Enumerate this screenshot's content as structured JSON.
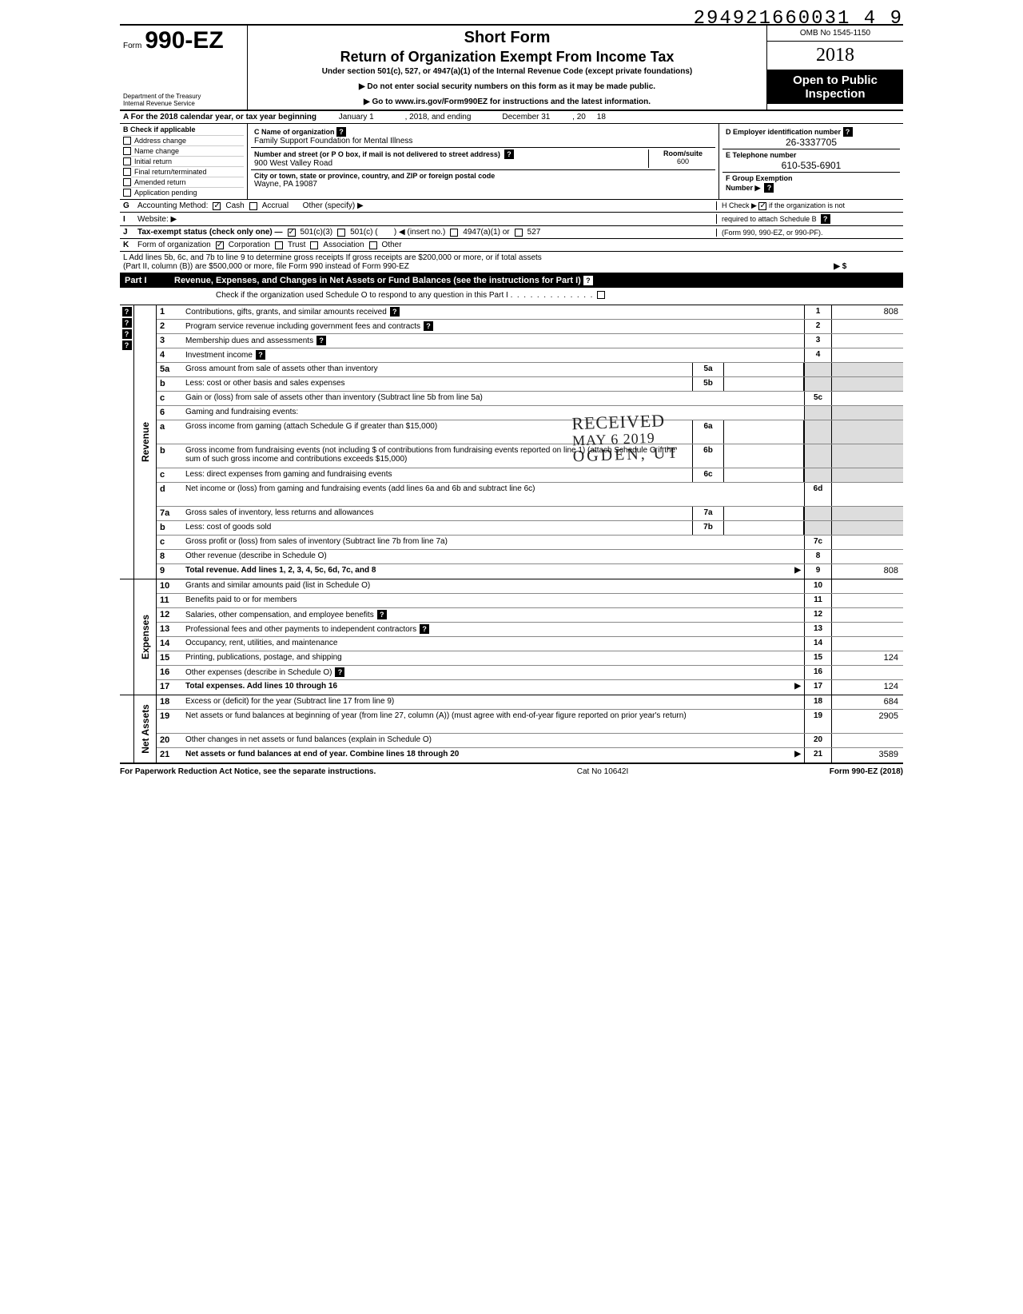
{
  "doc_id": "294921660031 4  9",
  "header": {
    "form_prefix": "Form",
    "form_number": "990-EZ",
    "dept_line1": "Department of the Treasury",
    "dept_line2": "Internal Revenue Service",
    "short_form": "Short Form",
    "return_title": "Return of Organization Exempt From Income Tax",
    "under_section": "Under section 501(c), 527, or 4947(a)(1) of the Internal Revenue Code (except private foundations)",
    "ssn_warn": "▶ Do not enter social security numbers on this form as it may be made public.",
    "goto": "▶ Go to www.irs.gov/Form990EZ for instructions and the latest information.",
    "omb": "OMB No 1545-1150",
    "year_display": "2018",
    "open_line1": "Open to Public",
    "open_line2": "Inspection"
  },
  "lineA": {
    "prefix": "A For the 2018 calendar year, or tax year beginning",
    "begin": "January 1",
    "mid": ", 2018, and ending",
    "end": "December 31",
    "suffix": ", 20",
    "yy": "18"
  },
  "blockB": {
    "header": "B  Check if applicable",
    "items": [
      "Address change",
      "Name change",
      "Initial return",
      "Final return/terminated",
      "Amended return",
      "Application pending"
    ]
  },
  "blockC": {
    "c_label": "C  Name of organization",
    "c_value": "Family Support Foundation for Mental Illness",
    "street_label": "Number and street (or P O  box, if mail is not delivered to street address)",
    "street_value": "900 West Valley Road",
    "room_label": "Room/suite",
    "room_value": "600",
    "city_label": "City or town, state or province, country, and ZIP or foreign postal code",
    "city_value": "Wayne, PA  19087"
  },
  "blockD": {
    "d_label": "D Employer identification number",
    "d_value": "26-3337705",
    "e_label": "E Telephone number",
    "e_value": "610-535-6901",
    "f_label": "F Group Exemption",
    "f_label2": "Number ▶"
  },
  "lineG": {
    "letter": "G",
    "label": "Accounting Method:",
    "cash": "Cash",
    "accrual": "Accrual",
    "other": "Other (specify) ▶"
  },
  "lineH": {
    "text1": "H Check ▶",
    "text2": "if the organization is not",
    "text3": "required to attach Schedule B",
    "text4": "(Form 990, 990-EZ, or 990-PF)."
  },
  "lineI": {
    "letter": "I",
    "label": "Website: ▶"
  },
  "lineJ": {
    "letter": "J",
    "label": "Tax-exempt status (check only one) —",
    "o1": "501(c)(3)",
    "o2": "501(c) (",
    "o2b": ") ◀ (insert no.)",
    "o3": "4947(a)(1) or",
    "o4": "527"
  },
  "lineK": {
    "letter": "K",
    "label": "Form of organization",
    "o1": "Corporation",
    "o2": "Trust",
    "o3": "Association",
    "o4": "Other"
  },
  "lineL": {
    "text1": "L Add lines 5b, 6c, and 7b to line 9 to determine gross receipts  If gross receipts are $200,000 or more, or if total assets",
    "text2": "(Part II, column (B)) are $500,000 or more, file Form 990 instead of Form 990-EZ",
    "arrow": "▶  $"
  },
  "part1": {
    "label": "Part I",
    "title": "Revenue, Expenses, and Changes in Net Assets or Fund Balances (see the instructions for Part I)",
    "check_o": "Check if the organization used Schedule O to respond to any question in this Part I"
  },
  "sections": {
    "revenue_label": "Revenue",
    "expenses_label": "Expenses",
    "netassets_label": "Net Assets"
  },
  "rows": [
    {
      "n": "1",
      "d": "Contributions, gifts, grants, and similar amounts received",
      "end": "1",
      "v": "808",
      "help": true
    },
    {
      "n": "2",
      "d": "Program service revenue including government fees and contracts",
      "end": "2",
      "v": "",
      "help": true
    },
    {
      "n": "3",
      "d": "Membership dues and assessments",
      "end": "3",
      "v": "",
      "help": true
    },
    {
      "n": "4",
      "d": "Investment income",
      "end": "4",
      "v": "",
      "help": true
    },
    {
      "n": "5a",
      "d": "Gross amount from sale of assets other than inventory",
      "mid": "5a",
      "shade": true
    },
    {
      "n": "b",
      "d": "Less: cost or other basis and sales expenses",
      "mid": "5b",
      "shade": true
    },
    {
      "n": "c",
      "d": "Gain or (loss) from sale of assets other than inventory (Subtract line 5b from line 5a)",
      "end": "5c",
      "v": ""
    },
    {
      "n": "6",
      "d": "Gaming and fundraising events:",
      "noend": true
    },
    {
      "n": "a",
      "d": "Gross income from gaming (attach Schedule G if greater than $15,000)",
      "mid": "6a",
      "shade": true,
      "tall": true
    },
    {
      "n": "b",
      "d": "Gross income from fundraising events (not including  $                              of contributions from fundraising events reported on line 1) (attach Schedule G if the sum of such gross income and contributions exceeds $15,000)",
      "mid": "6b",
      "shade": true,
      "tall": true
    },
    {
      "n": "c",
      "d": "Less: direct expenses from gaming and fundraising events",
      "mid": "6c",
      "shade": true
    },
    {
      "n": "d",
      "d": "Net income or (loss) from gaming and fundraising events (add lines 6a and 6b and subtract line 6c)",
      "end": "6d",
      "v": "",
      "tall": true
    },
    {
      "n": "7a",
      "d": "Gross sales of inventory, less returns and allowances",
      "mid": "7a",
      "shade": true
    },
    {
      "n": "b",
      "d": "Less: cost of goods sold",
      "mid": "7b",
      "shade": true
    },
    {
      "n": "c",
      "d": "Gross profit or (loss) from sales of inventory (Subtract line 7b from line 7a)",
      "end": "7c",
      "v": ""
    },
    {
      "n": "8",
      "d": "Other revenue (describe in Schedule O)",
      "end": "8",
      "v": ""
    },
    {
      "n": "9",
      "d": "Total revenue. Add lines 1, 2, 3, 4, 5c, 6d, 7c, and 8",
      "end": "9",
      "v": "808",
      "arrow": true,
      "bold": true
    }
  ],
  "exp_rows": [
    {
      "n": "10",
      "d": "Grants and similar amounts paid (list in Schedule O)",
      "end": "10",
      "v": ""
    },
    {
      "n": "11",
      "d": "Benefits paid to or for members",
      "end": "11",
      "v": ""
    },
    {
      "n": "12",
      "d": "Salaries, other compensation, and employee benefits",
      "end": "12",
      "v": "",
      "help": true
    },
    {
      "n": "13",
      "d": "Professional fees and other payments to independent contractors",
      "end": "13",
      "v": "",
      "help": true
    },
    {
      "n": "14",
      "d": "Occupancy, rent, utilities, and maintenance",
      "end": "14",
      "v": ""
    },
    {
      "n": "15",
      "d": "Printing, publications, postage, and shipping",
      "end": "15",
      "v": "124"
    },
    {
      "n": "16",
      "d": "Other expenses (describe in Schedule O)",
      "end": "16",
      "v": "",
      "help": true
    },
    {
      "n": "17",
      "d": "Total expenses. Add lines 10 through 16",
      "end": "17",
      "v": "124",
      "arrow": true,
      "bold": true
    }
  ],
  "na_rows": [
    {
      "n": "18",
      "d": "Excess or (deficit) for the year (Subtract line 17 from line 9)",
      "end": "18",
      "v": "684"
    },
    {
      "n": "19",
      "d": "Net assets or fund balances at beginning of year (from line 27, column (A)) (must agree with end-of-year figure reported on prior year's return)",
      "end": "19",
      "v": "2905",
      "tall": true
    },
    {
      "n": "20",
      "d": "Other changes in net assets or fund balances (explain in Schedule O)",
      "end": "20",
      "v": ""
    },
    {
      "n": "21",
      "d": "Net assets or fund balances at end of year. Combine lines 18 through 20",
      "end": "21",
      "v": "3589",
      "arrow": true,
      "bold": true
    }
  ],
  "footer": {
    "left": "For Paperwork Reduction Act Notice, see the separate instructions.",
    "mid": "Cat  No  10642I",
    "right": "Form 990-EZ (2018)"
  },
  "stamp": {
    "l1": "RECEIVED",
    "l2": "MAY 6 2019",
    "l3": "OGDEN, UT"
  },
  "colors": {
    "black": "#000000",
    "shade": "#dddddd"
  }
}
